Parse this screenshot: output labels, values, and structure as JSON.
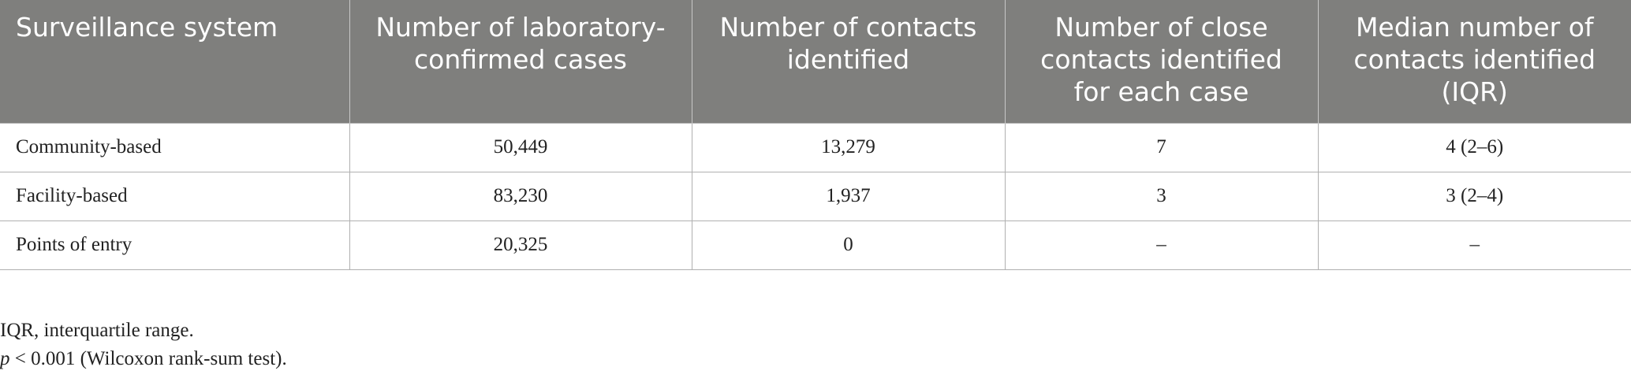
{
  "table": {
    "header": [
      "Surveillance system",
      "Number of laboratory-confirmed cases",
      "Number of contacts identified",
      "Number of close contacts identified for each case",
      "Median number of contacts identified (IQR)"
    ],
    "rows": [
      [
        "Community-based",
        "50,449",
        "13,279",
        "7",
        "4 (2–6)"
      ],
      [
        "Facility-based",
        "83,230",
        "1,937",
        "3",
        "3 (2–4)"
      ],
      [
        "Points of entry",
        "20,325",
        "0",
        "–",
        "–"
      ]
    ]
  },
  "notes": {
    "abbreviation": "IQR, interquartile range.",
    "significance": {
      "symbol": "p",
      "text": "< 0.001 (Wilcoxon rank-sum test)."
    }
  }
}
